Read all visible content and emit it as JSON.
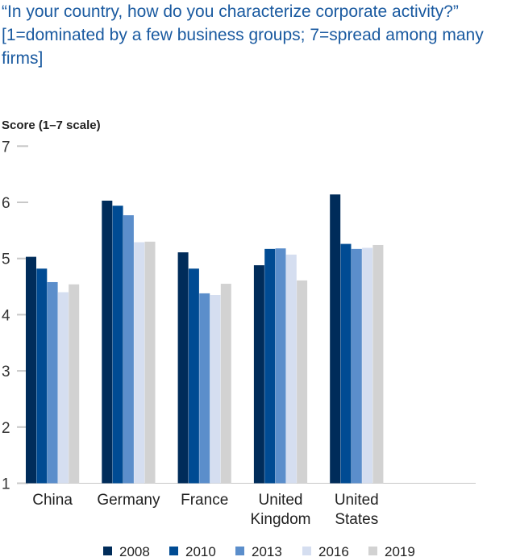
{
  "chart_data": {
    "type": "bar",
    "title": "“In your country, how do you characterize corporate activity?” [1=dominated by a few business groups; 7=spread among many firms]",
    "ylabel": "Score (1–7 scale)",
    "ylim": [
      1,
      7
    ],
    "yticks": [
      "1",
      "2",
      "3",
      "4",
      "5",
      "6",
      "7"
    ],
    "categories": [
      [
        "China"
      ],
      [
        "Germany"
      ],
      [
        "France"
      ],
      [
        "United",
        "Kingdom"
      ],
      [
        "United",
        "States"
      ]
    ],
    "series": [
      {
        "name": "2008",
        "color": "#002c5a",
        "values": [
          5.03,
          6.03,
          5.11,
          4.88,
          6.14
        ]
      },
      {
        "name": "2010",
        "color": "#004b93",
        "values": [
          4.82,
          5.94,
          4.82,
          5.17,
          5.26
        ]
      },
      {
        "name": "2013",
        "color": "#5b8ecb",
        "values": [
          4.58,
          5.77,
          4.38,
          5.18,
          5.17
        ]
      },
      {
        "name": "2016",
        "color": "#d5def0",
        "values": [
          4.4,
          5.29,
          4.35,
          5.07,
          5.19
        ]
      },
      {
        "name": "2019",
        "color": "#d2d2d2",
        "values": [
          4.54,
          5.3,
          4.55,
          4.61,
          5.24
        ]
      }
    ],
    "grid": false,
    "legend": "bottom"
  }
}
